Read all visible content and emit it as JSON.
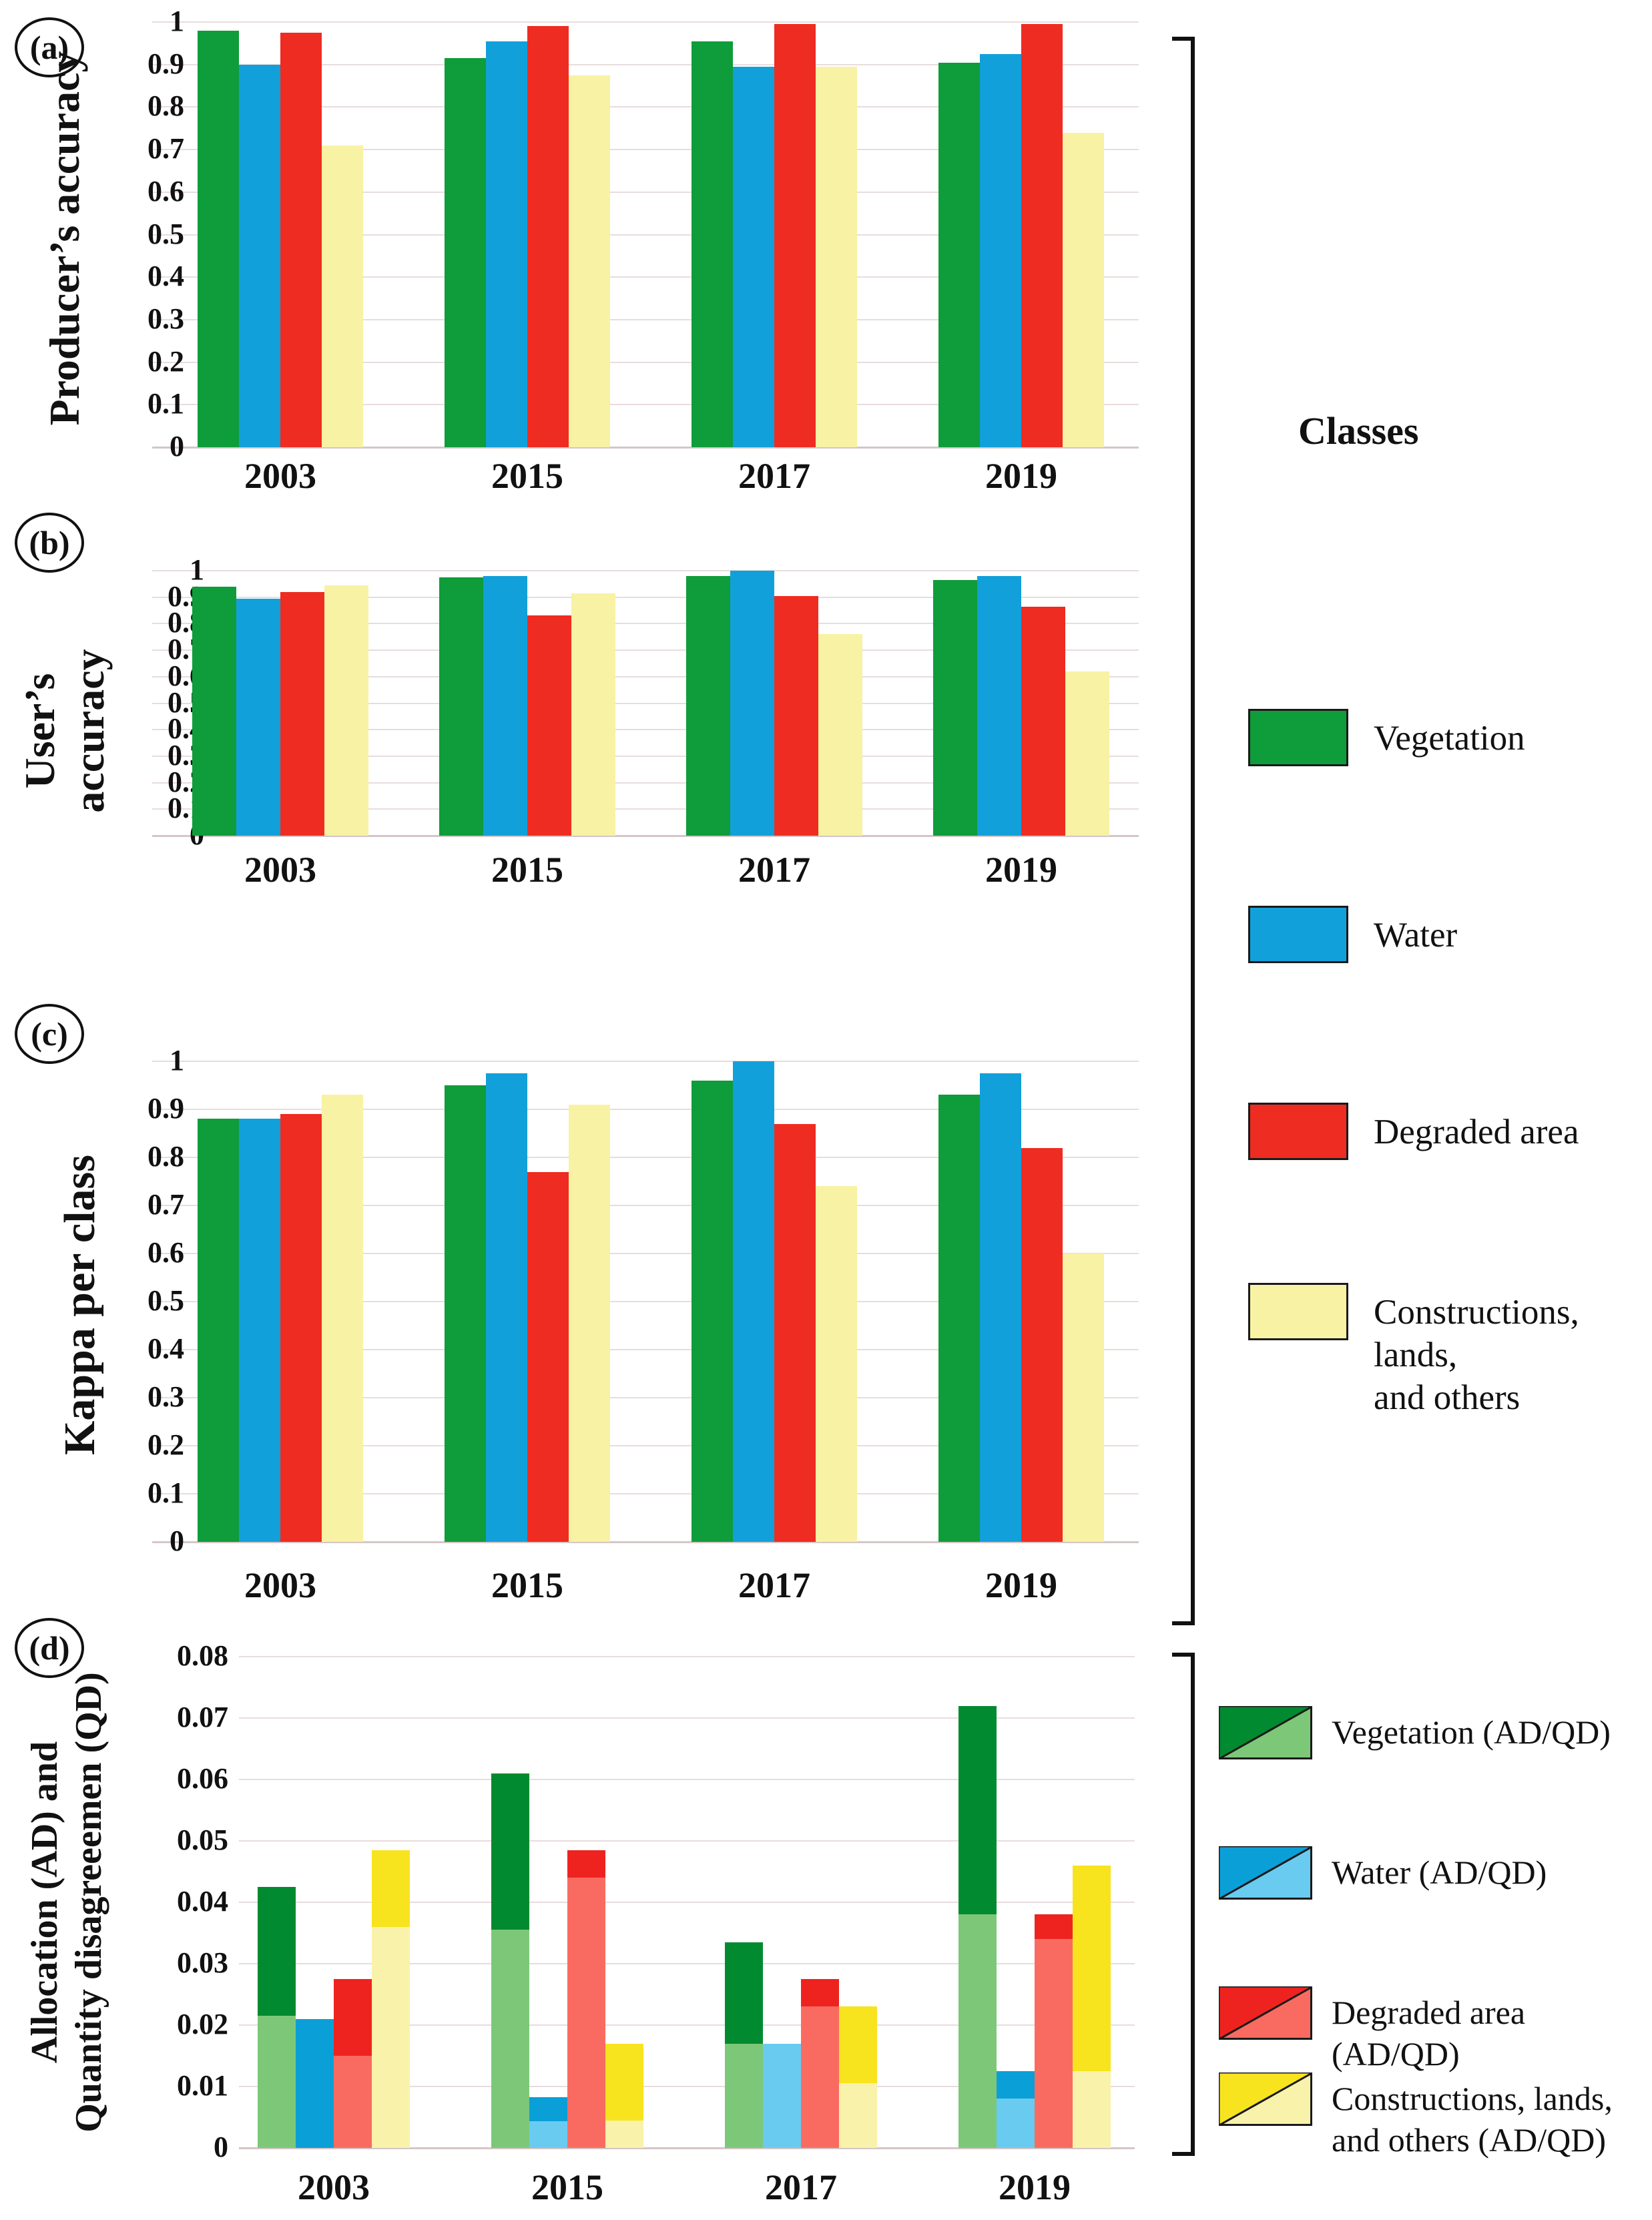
{
  "chart_data": [
    {
      "id": "a",
      "type": "bar",
      "panel_badge": "(a)",
      "ylabel": "Producer’s accuracy",
      "categories": [
        "2003",
        "2015",
        "2017",
        "2019"
      ],
      "ylim": [
        0,
        1
      ],
      "yticks": [
        "1",
        "0.9",
        "0.8",
        "0.7",
        "0.6",
        "0.5",
        "0.4",
        "0.3",
        "0.2",
        "0.1",
        "0"
      ],
      "grid": true,
      "legend_position": "right",
      "series": [
        {
          "name": "Vegetation",
          "color": "#0f9c3a",
          "values": [
            0.98,
            0.915,
            0.955,
            0.905
          ]
        },
        {
          "name": "Water",
          "color": "#12a0da",
          "values": [
            0.9,
            0.955,
            0.895,
            0.925
          ]
        },
        {
          "name": "Degraded area",
          "color": "#ee2c21",
          "values": [
            0.975,
            0.99,
            0.995,
            0.995
          ]
        },
        {
          "name": "Constructions, lands, and others",
          "color": "#f8f2a4",
          "values": [
            0.71,
            0.875,
            0.895,
            0.74
          ]
        }
      ]
    },
    {
      "id": "b",
      "type": "bar",
      "panel_badge": "(b)",
      "ylabel": "User’s accuracy",
      "categories": [
        "2003",
        "2015",
        "2017",
        "2019"
      ],
      "ylim": [
        0,
        1
      ],
      "yticks": [
        "1",
        "0.9",
        "0.8",
        "0.7",
        "0.6",
        "0.5",
        "0.4",
        "0.3",
        "0.2",
        "0.1",
        "0"
      ],
      "grid": true,
      "series": [
        {
          "name": "Vegetation",
          "color": "#0f9c3a",
          "values": [
            0.94,
            0.975,
            0.98,
            0.965
          ]
        },
        {
          "name": "Water",
          "color": "#12a0da",
          "values": [
            0.895,
            0.98,
            1.0,
            0.98
          ]
        },
        {
          "name": "Degraded area",
          "color": "#ee2c21",
          "values": [
            0.92,
            0.83,
            0.905,
            0.865
          ]
        },
        {
          "name": "Constructions, lands, and others",
          "color": "#f8f2a4",
          "values": [
            0.945,
            0.915,
            0.76,
            0.62
          ]
        }
      ]
    },
    {
      "id": "c",
      "type": "bar",
      "panel_badge": "(c)",
      "ylabel": "Kappa per class",
      "categories": [
        "2003",
        "2015",
        "2017",
        "2019"
      ],
      "ylim": [
        0,
        1
      ],
      "yticks": [
        "1",
        "0.9",
        "0.8",
        "0.7",
        "0.6",
        "0.5",
        "0.4",
        "0.3",
        "0.2",
        "0.1",
        "0"
      ],
      "grid": true,
      "series": [
        {
          "name": "Vegetation",
          "color": "#0f9c3a",
          "values": [
            0.88,
            0.95,
            0.96,
            0.93
          ]
        },
        {
          "name": "Water",
          "color": "#12a0da",
          "values": [
            0.88,
            0.975,
            1.0,
            0.975
          ]
        },
        {
          "name": "Degraded area",
          "color": "#ee2c21",
          "values": [
            0.89,
            0.77,
            0.87,
            0.82
          ]
        },
        {
          "name": "Constructions, lands, and others",
          "color": "#f8f2a4",
          "values": [
            0.93,
            0.91,
            0.74,
            0.6
          ]
        }
      ]
    },
    {
      "id": "d",
      "type": "stacked-bar",
      "panel_badge": "(d)",
      "ylabel_lines": [
        "Allocation (AD) and",
        "Quantity disagreeemen (QD)"
      ],
      "categories": [
        "2003",
        "2015",
        "2017",
        "2019"
      ],
      "ylim": [
        0,
        0.08
      ],
      "yticks": [
        "0.08",
        "0.07",
        "0.06",
        "0.05",
        "0.04",
        "0.03",
        "0.02",
        "0.01",
        "0"
      ],
      "grid": true,
      "series": [
        {
          "name": "Vegetation (AD/QD)",
          "color_light": "#7cc878",
          "color_dark": "#018a30",
          "bottom_values": [
            0.0215,
            0.0355,
            0.017,
            0.038
          ],
          "top_values": [
            0.021,
            0.0255,
            0.0165,
            0.034
          ]
        },
        {
          "name": "Water (AD/QD)",
          "color_light": "#69cbf0",
          "color_dark": "#0b9fd8",
          "bottom_values": [
            0.0,
            0.0043,
            0.017,
            0.008
          ],
          "top_values": [
            0.021,
            0.004,
            0.0,
            0.0045
          ]
        },
        {
          "name": "Degraded area (AD/QD)",
          "color_light": "#f96b60",
          "color_dark": "#ee2320",
          "bottom_values": [
            0.015,
            0.044,
            0.023,
            0.034
          ],
          "top_values": [
            0.0125,
            0.0045,
            0.0045,
            0.004
          ]
        },
        {
          "name": "Constructions, lands, and others (AD/QD)",
          "color_light": "#f9f2ab",
          "color_dark": "#f8e31f",
          "bottom_values": [
            0.036,
            0.0045,
            0.0105,
            0.0125
          ],
          "top_values": [
            0.0125,
            0.0125,
            0.0125,
            0.0335
          ]
        }
      ]
    }
  ],
  "legend_classes": {
    "title": "Classes",
    "items": [
      {
        "label": "Vegetation",
        "color": "#0f9c3a"
      },
      {
        "label": "Water",
        "color": "#12a0da"
      },
      {
        "label": "Degraded area",
        "color": "#ee2c21"
      },
      {
        "label": "Constructions, lands,\nand others",
        "color": "#f8f2a4"
      }
    ]
  },
  "legend_adqd": {
    "items": [
      {
        "label": "Vegetation (AD/QD)",
        "dark": "#018a30",
        "light": "#7cc878"
      },
      {
        "label": "Water (AD/QD)",
        "dark": "#0b9fd8",
        "light": "#69cbf0"
      },
      {
        "label": "Degraded area (AD/QD)",
        "dark": "#ee2320",
        "light": "#f96b60"
      },
      {
        "label": "Constructions, lands,\nand others (AD/QD)",
        "dark": "#f8e31f",
        "light": "#f9f2ab"
      }
    ]
  },
  "colors": {
    "gridline": "#e9dcdc",
    "axis_baseline": "#d5c6c6",
    "text": "#111111"
  }
}
